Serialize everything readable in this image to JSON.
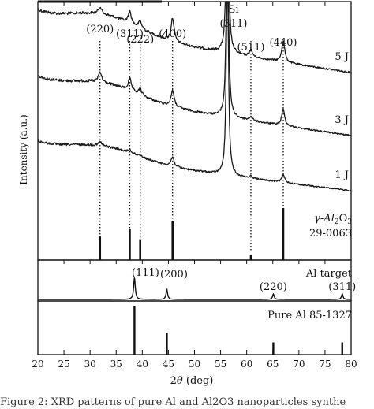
{
  "chart_data": {
    "type": "line",
    "xlabel_prefix": "2",
    "xlabel_theta": "θ",
    "xlabel_unit": " (deg)",
    "ylabel": "Intensity (a.u.)",
    "xlim": [
      20,
      80
    ],
    "x_ticks": [
      20,
      25,
      30,
      35,
      40,
      45,
      50,
      55,
      60,
      65,
      70,
      75,
      80
    ],
    "guide_lines_2theta": [
      31.9,
      37.6,
      39.6,
      45.8,
      60.8,
      67.0
    ],
    "series": [
      {
        "name": "5 J",
        "peaks": [
          {
            "x": 31.9,
            "h": 0.3
          },
          {
            "x": 37.6,
            "h": 0.5
          },
          {
            "x": 39.6,
            "h": 0.3
          },
          {
            "x": 45.8,
            "h": 1.0
          },
          {
            "x": 60.8,
            "h": 0.3
          },
          {
            "x": 67.0,
            "h": 0.9
          }
        ]
      },
      {
        "name": "3 J",
        "peaks": [
          {
            "x": 31.9,
            "h": 0.5
          },
          {
            "x": 37.6,
            "h": 0.6
          },
          {
            "x": 39.6,
            "h": 0.3
          },
          {
            "x": 45.8,
            "h": 0.8
          },
          {
            "x": 60.8,
            "h": 0.2
          },
          {
            "x": 67.0,
            "h": 0.8
          }
        ]
      },
      {
        "name": "1 J",
        "peaks": [
          {
            "x": 31.9,
            "h": 0.2
          },
          {
            "x": 37.6,
            "h": 0.2
          },
          {
            "x": 39.6,
            "h": 0.1
          },
          {
            "x": 45.8,
            "h": 0.5
          },
          {
            "x": 60.8,
            "h": 0.1
          },
          {
            "x": 67.0,
            "h": 0.4
          }
        ]
      }
    ],
    "si_peak": {
      "x": 56.3,
      "label_top": "Si",
      "label_bottom": "(311)"
    },
    "peak_labels": [
      {
        "text": "(220)",
        "x": 31.9
      },
      {
        "text": "(311)",
        "x": 37.6
      },
      {
        "text": "(222)",
        "x": 39.6
      },
      {
        "text": "(400)",
        "x": 45.8
      },
      {
        "text": "(511)",
        "x": 60.8
      },
      {
        "text": "(440)",
        "x": 67.0
      }
    ],
    "gamma_reference": {
      "line1": "γ-Al",
      "sub1": "2",
      "mid": "O",
      "sub2": "3",
      "line2": "29-0063",
      "sticks": [
        {
          "x": 31.9,
          "h": 0.45
        },
        {
          "x": 37.6,
          "h": 0.6
        },
        {
          "x": 39.6,
          "h": 0.4
        },
        {
          "x": 45.8,
          "h": 0.75
        },
        {
          "x": 60.8,
          "h": 0.1
        },
        {
          "x": 67.0,
          "h": 1.0
        }
      ]
    },
    "al_target": {
      "label": "Al target",
      "peaks": [
        {
          "x": 38.5,
          "h": 1.0
        },
        {
          "x": 44.7,
          "h": 0.45
        },
        {
          "x": 65.1,
          "h": 0.25
        },
        {
          "x": 78.3,
          "h": 0.25
        }
      ],
      "peak_labels": [
        {
          "text": "(111)",
          "x": 38.5
        },
        {
          "text": "(200)",
          "x": 44.7
        },
        {
          "text": "(220)",
          "x": 65.1
        },
        {
          "text": "(311)",
          "x": 78.3
        }
      ]
    },
    "pure_al_reference": {
      "label": "Pure Al 85-1327",
      "sticks": [
        {
          "x": 38.5,
          "h": 1.0
        },
        {
          "x": 44.7,
          "h": 0.45
        },
        {
          "x": 65.1,
          "h": 0.25
        },
        {
          "x": 78.3,
          "h": 0.25
        }
      ]
    }
  },
  "caption": "Figure 2: XRD patterns of pure Al and Al2O3 nanoparticles synthe"
}
